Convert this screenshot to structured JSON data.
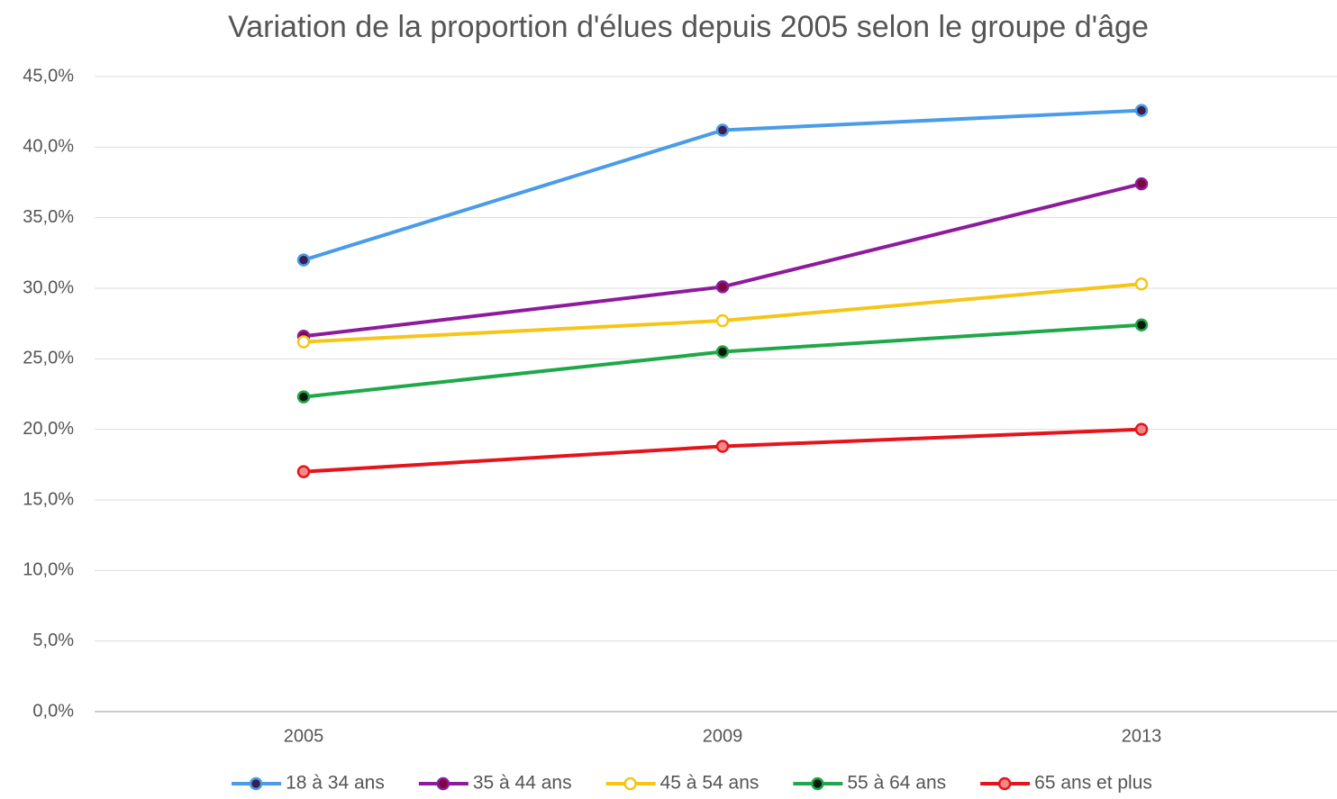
{
  "chart_data": {
    "type": "line",
    "title": "Variation de la proportion d'élues depuis 2005 selon le groupe d'âge",
    "categories": [
      "2005",
      "2009",
      "2013"
    ],
    "series": [
      {
        "name": "18 à 34 ans",
        "color": "#4a9ce8",
        "marker_color": "#3a1f4f",
        "values": [
          32.0,
          41.2,
          42.6
        ]
      },
      {
        "name": "35 à 44 ans",
        "color": "#8e1a9e",
        "marker_color": "#7a0a3a",
        "values": [
          26.6,
          30.1,
          37.4
        ]
      },
      {
        "name": "45 à 54 ans",
        "color": "#f5c518",
        "marker_color": "#ffffff",
        "values": [
          26.2,
          27.7,
          30.3
        ]
      },
      {
        "name": "55 à 64 ans",
        "color": "#1fa84a",
        "marker_color": "#0a1a0a",
        "values": [
          22.3,
          25.5,
          27.4
        ]
      },
      {
        "name": "65 ans et plus",
        "color": "#e5141c",
        "marker_color": "#f08a8a",
        "values": [
          17.0,
          18.8,
          20.0
        ]
      }
    ],
    "ylim": [
      0,
      45
    ],
    "yticks": [
      {
        "value": 0,
        "label": "0,0%"
      },
      {
        "value": 5,
        "label": "5,0%"
      },
      {
        "value": 10,
        "label": "10,0%"
      },
      {
        "value": 15,
        "label": "15,0%"
      },
      {
        "value": 20,
        "label": "20,0%"
      },
      {
        "value": 25,
        "label": "25,0%"
      },
      {
        "value": 30,
        "label": "30,0%"
      },
      {
        "value": 35,
        "label": "35,0%"
      },
      {
        "value": 40,
        "label": "40,0%"
      },
      {
        "value": 45,
        "label": "45,0%"
      }
    ],
    "grid": true,
    "legend": "bottom"
  }
}
